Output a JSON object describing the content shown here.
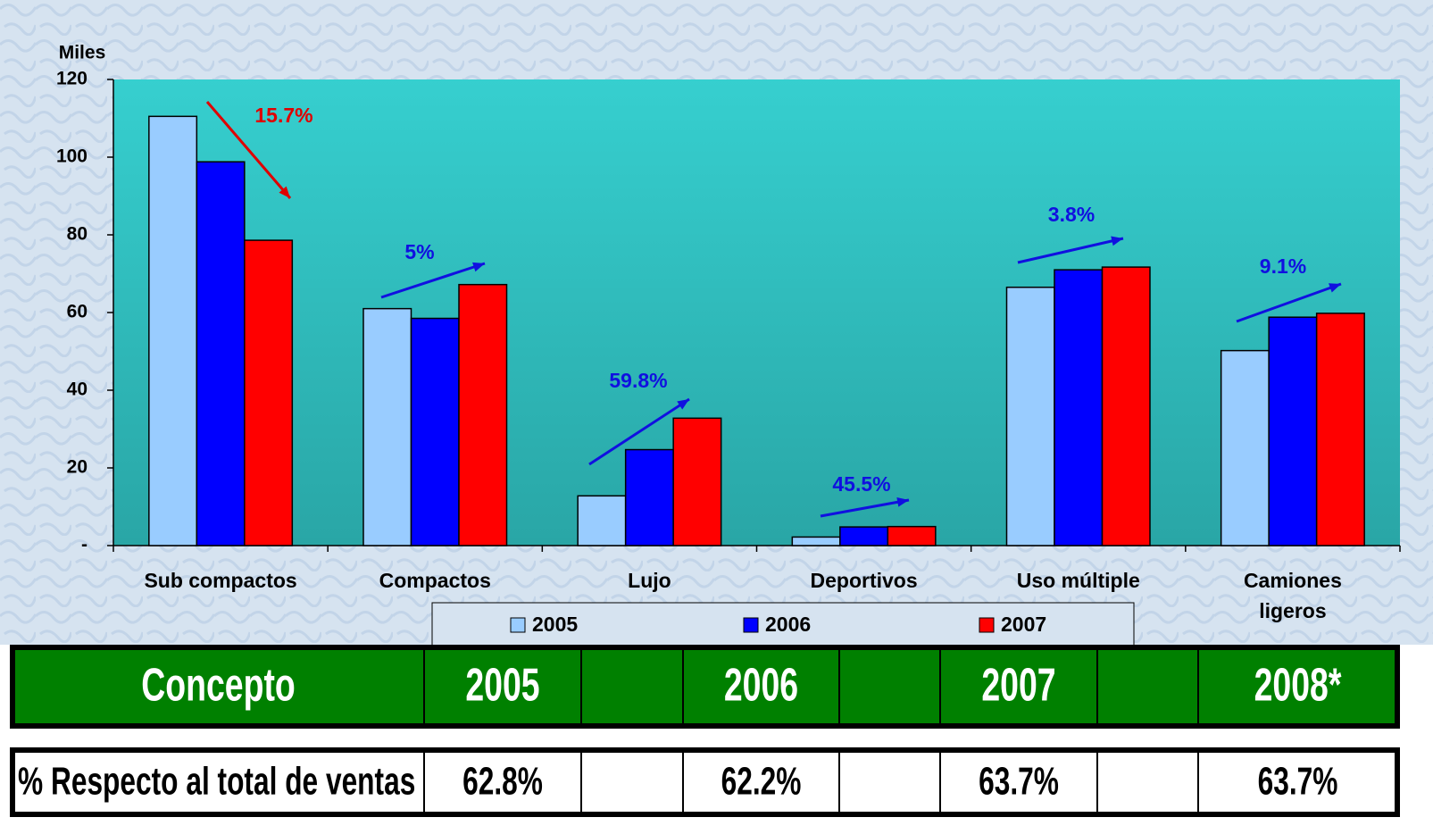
{
  "chart_data": {
    "type": "bar",
    "y_unit_label": "Miles",
    "categories": [
      "Sub compactos",
      "Compactos",
      "Lujo",
      "Deportivos",
      "Uso múltiple",
      "Camiones ligeros"
    ],
    "series": [
      {
        "name": "2005",
        "color": "#99ccff",
        "values": [
          110.5,
          61,
          12.8,
          2.2,
          66.5,
          50.2
        ]
      },
      {
        "name": "2006",
        "color": "#0000ff",
        "values": [
          98.8,
          58.5,
          24.7,
          4.8,
          71,
          58.8
        ]
      },
      {
        "name": "2007",
        "color": "#ff0000",
        "values": [
          78.6,
          67.2,
          32.8,
          4.9,
          71.7,
          59.8
        ]
      }
    ],
    "ylim": [
      0,
      120
    ],
    "yticks": [
      {
        "value": 0,
        "label": "-"
      },
      20,
      40,
      60,
      80,
      100,
      120
    ],
    "annotations": [
      {
        "text": "15.7%",
        "color": "#e00000"
      },
      {
        "text": "5%",
        "color": "#1010e0"
      },
      {
        "text": "59.8%",
        "color": "#1010e0"
      },
      {
        "text": "45.5%",
        "color": "#1010e0"
      },
      {
        "text": "3.8%",
        "color": "#1010e0"
      },
      {
        "text": "9.1%",
        "color": "#1010e0"
      }
    ],
    "legend": "bottom"
  },
  "table": {
    "header": [
      "Concepto",
      "2005",
      "2006",
      "2007",
      "2008*"
    ],
    "rows": [
      [
        "% Respecto al total de ventas",
        "62.8%",
        "62.2%",
        "63.7%",
        "63.7%"
      ]
    ]
  }
}
